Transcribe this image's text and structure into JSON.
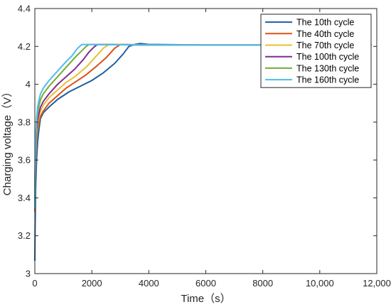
{
  "chart_data": {
    "type": "line",
    "title": "",
    "xlabel": "Time（s）",
    "ylabel": "Charging voltage（V）",
    "xlim": [
      0,
      12000
    ],
    "ylim": [
      3.0,
      4.4
    ],
    "xticks": [
      0,
      2000,
      4000,
      6000,
      8000,
      10000,
      12000
    ],
    "xtick_labels": [
      "0",
      "2000",
      "4000",
      "6000",
      "8000",
      "10,000",
      "12,000"
    ],
    "yticks": [
      3.0,
      3.2,
      3.4,
      3.6,
      3.8,
      4.0,
      4.2,
      4.4
    ],
    "ytick_labels": [
      "3",
      "3.2",
      "3.4",
      "3.6",
      "3.8",
      "4",
      "4.2",
      "4.4"
    ],
    "grid": false,
    "legend_position": "top-right",
    "series": [
      {
        "name": "The 10th cycle",
        "color": "#1f5fa0",
        "x": [
          0,
          10,
          30,
          60,
          100,
          150,
          200,
          300,
          500,
          800,
          1200,
          1600,
          2000,
          2400,
          2800,
          3100,
          3300,
          3500,
          3700,
          4000,
          4300,
          6000,
          8000,
          9000,
          10000,
          11800
        ],
        "y": [
          3.07,
          3.25,
          3.45,
          3.6,
          3.7,
          3.77,
          3.82,
          3.85,
          3.88,
          3.92,
          3.96,
          3.99,
          4.02,
          4.06,
          4.11,
          4.16,
          4.2,
          4.21,
          4.215,
          4.21,
          4.21,
          4.207,
          4.207,
          4.207,
          4.207,
          4.207
        ]
      },
      {
        "name": "The 40th cycle",
        "color": "#d95319",
        "x": [
          0,
          10,
          30,
          60,
          100,
          150,
          200,
          300,
          500,
          800,
          1100,
          1400,
          1800,
          2200,
          2500,
          2800,
          3000,
          3200,
          4000,
          6000,
          8000,
          10000,
          11800
        ],
        "y": [
          3.33,
          3.45,
          3.6,
          3.7,
          3.76,
          3.8,
          3.83,
          3.86,
          3.9,
          3.94,
          3.98,
          4.01,
          4.05,
          4.1,
          4.14,
          4.19,
          4.21,
          4.21,
          4.207,
          4.207,
          4.207,
          4.207,
          4.207
        ]
      },
      {
        "name": "The 70th cycle",
        "color": "#e8c032",
        "x": [
          0,
          10,
          30,
          60,
          100,
          150,
          200,
          300,
          500,
          800,
          1100,
          1400,
          1800,
          2100,
          2400,
          2600,
          2800,
          4000,
          6000,
          8000,
          10000,
          11800
        ],
        "y": [
          3.38,
          3.5,
          3.64,
          3.73,
          3.79,
          3.83,
          3.86,
          3.89,
          3.93,
          3.97,
          4.01,
          4.04,
          4.09,
          4.14,
          4.19,
          4.21,
          4.21,
          4.207,
          4.207,
          4.207,
          4.207,
          4.207
        ]
      },
      {
        "name": "The 100th cycle",
        "color": "#7e2f8e",
        "x": [
          0,
          10,
          30,
          60,
          100,
          150,
          200,
          300,
          500,
          800,
          1100,
          1400,
          1700,
          1900,
          2100,
          2200,
          2400,
          4000,
          6000,
          8000,
          10000,
          11800
        ],
        "y": [
          3.4,
          3.53,
          3.67,
          3.76,
          3.81,
          3.85,
          3.88,
          3.91,
          3.95,
          4.0,
          4.04,
          4.08,
          4.13,
          4.17,
          4.2,
          4.21,
          4.21,
          4.207,
          4.207,
          4.207,
          4.207,
          4.207
        ]
      },
      {
        "name": "The 130th cycle",
        "color": "#77ac30",
        "x": [
          0,
          10,
          30,
          60,
          100,
          150,
          200,
          300,
          500,
          800,
          1100,
          1400,
          1600,
          1800,
          1900,
          2100,
          4000,
          6000,
          8000,
          10000,
          11800
        ],
        "y": [
          3.42,
          3.56,
          3.7,
          3.79,
          3.85,
          3.89,
          3.92,
          3.95,
          3.99,
          4.04,
          4.09,
          4.14,
          4.17,
          4.2,
          4.21,
          4.21,
          4.207,
          4.207,
          4.207,
          4.207,
          4.207
        ]
      },
      {
        "name": "The 160th cycle",
        "color": "#4dbeee",
        "x": [
          0,
          10,
          30,
          60,
          100,
          150,
          200,
          300,
          500,
          800,
          1100,
          1300,
          1500,
          1650,
          1800,
          4000,
          6000,
          8000,
          10000,
          11800
        ],
        "y": [
          3.35,
          3.55,
          3.72,
          3.82,
          3.88,
          3.92,
          3.95,
          3.98,
          4.02,
          4.07,
          4.12,
          4.15,
          4.19,
          4.21,
          4.21,
          4.207,
          4.207,
          4.207,
          4.207,
          4.207
        ]
      }
    ]
  }
}
